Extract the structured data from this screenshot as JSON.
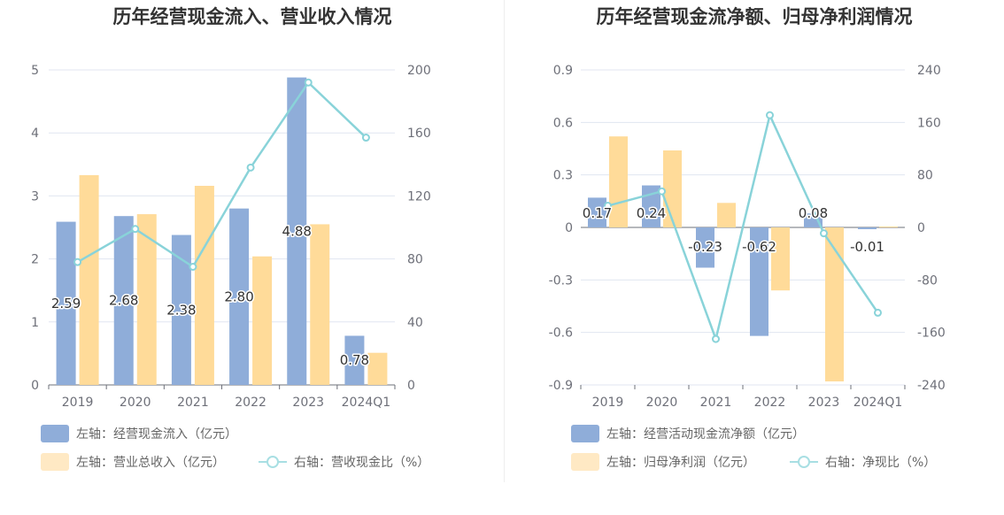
{
  "chart_data": [
    {
      "type": "bar",
      "title": "历年经营现金流入、营业收入情况",
      "categories": [
        "2019",
        "2020",
        "2021",
        "2022",
        "2023",
        "2024Q1"
      ],
      "y_left": {
        "ylim": [
          0,
          5
        ],
        "ticks": [
          "0",
          "1",
          "2",
          "3",
          "4",
          "5"
        ]
      },
      "y_right": {
        "ylim": [
          0,
          200
        ],
        "ticks": [
          "0",
          "40",
          "80",
          "120",
          "160",
          "200"
        ]
      },
      "series": [
        {
          "name": "左轴：经营现金流入（亿元）",
          "kind": "bar",
          "axis": "left",
          "color": "#8fadd9",
          "values": [
            2.59,
            2.68,
            2.38,
            2.8,
            4.88,
            0.78
          ],
          "labels": [
            "2.59",
            "2.68",
            "2.38",
            "2.80",
            "4.88",
            "0.78"
          ]
        },
        {
          "name": "左轴：营业总收入（亿元）",
          "kind": "bar",
          "axis": "left",
          "color": "#ffdb99",
          "values": [
            3.33,
            2.71,
            3.16,
            2.04,
            2.55,
            0.51
          ]
        },
        {
          "name": "右轴：营收现金比（%）",
          "kind": "line",
          "axis": "right",
          "color": "#89d3d9",
          "values": [
            78,
            99,
            75,
            138,
            192,
            157
          ]
        }
      ],
      "grid": true,
      "legend_position": "bottom"
    },
    {
      "type": "bar",
      "title": "历年经营现金流净额、归母净利润情况",
      "categories": [
        "2019",
        "2020",
        "2021",
        "2022",
        "2023",
        "2024Q1"
      ],
      "y_left": {
        "ylim": [
          -0.9,
          0.9
        ],
        "ticks": [
          "-0.9",
          "-0.6",
          "-0.3",
          "0",
          "0.3",
          "0.6",
          "0.9"
        ]
      },
      "y_right": {
        "ylim": [
          -240,
          240
        ],
        "ticks": [
          "-240",
          "-160",
          "-80",
          "0",
          "80",
          "160",
          "240"
        ]
      },
      "series": [
        {
          "name": "左轴：经营活动现金流净额（亿元）",
          "kind": "bar",
          "axis": "left",
          "color": "#8fadd9",
          "values": [
            0.17,
            0.24,
            -0.23,
            -0.62,
            0.08,
            -0.01
          ],
          "labels": [
            "0.17",
            "0.24",
            "-0.23",
            "-0.62",
            "0.08",
            "-0.01"
          ]
        },
        {
          "name": "左轴：归母净利润（亿元）",
          "kind": "bar",
          "axis": "left",
          "color": "#ffdb99",
          "values": [
            0.52,
            0.44,
            0.14,
            -0.36,
            -0.88,
            0.005
          ]
        },
        {
          "name": "右轴：净现比（%）",
          "kind": "line",
          "axis": "right",
          "color": "#89d3d9",
          "values": [
            33,
            55,
            -170,
            171,
            -9,
            -130
          ]
        }
      ],
      "grid": true,
      "legend_position": "bottom"
    }
  ]
}
